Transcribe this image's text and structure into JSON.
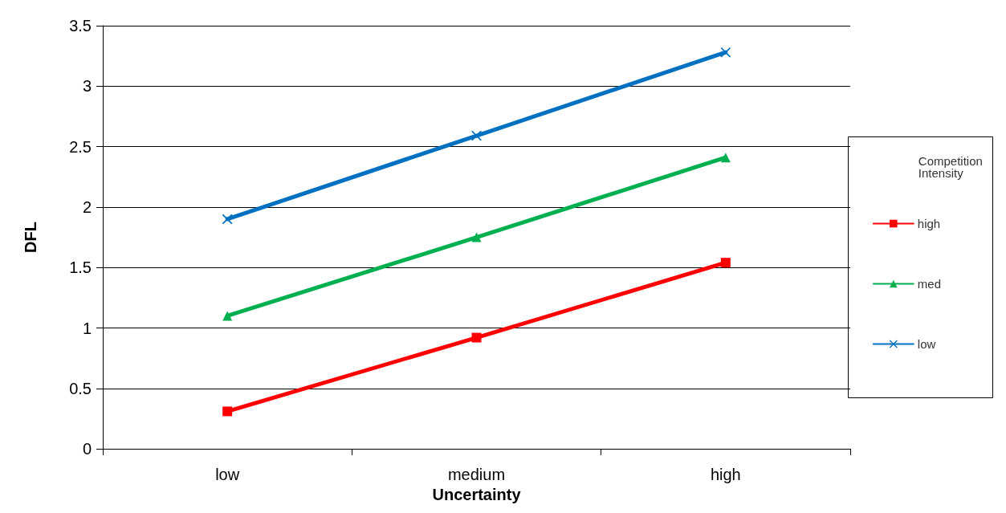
{
  "chart_data": {
    "type": "line",
    "xlabel": "Uncertainty",
    "ylabel": "DFL",
    "legend_title": "Competition Intensity",
    "categories": [
      "low",
      "medium",
      "high"
    ],
    "series": [
      {
        "name": "high",
        "color": "#ff0000",
        "marker": "square",
        "values": [
          0.31,
          0.92,
          1.54
        ]
      },
      {
        "name": "med",
        "color": "#00b050",
        "marker": "triangle",
        "values": [
          1.1,
          1.75,
          2.41
        ]
      },
      {
        "name": "low",
        "color": "#0070c0",
        "marker": "cross",
        "values": [
          1.9,
          2.59,
          3.28
        ]
      }
    ],
    "ylim": [
      0,
      3.5
    ],
    "yticks": [
      0,
      0.5,
      1,
      1.5,
      2,
      2.5,
      3,
      3.5
    ],
    "grid": "y",
    "legend": "right"
  }
}
